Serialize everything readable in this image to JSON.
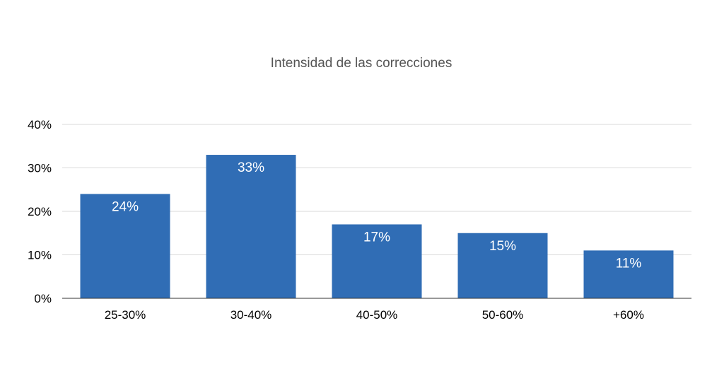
{
  "chart_data": {
    "type": "bar",
    "title": "Intensidad de las correcciones",
    "xlabel": "",
    "ylabel": "",
    "categories": [
      "25-30%",
      "30-40%",
      "40-50%",
      "50-60%",
      "+60%"
    ],
    "values": [
      24,
      33,
      17,
      15,
      11
    ],
    "data_labels": [
      "24%",
      "33%",
      "17%",
      "15%",
      "11%"
    ],
    "ylim": [
      0,
      40
    ],
    "yticks": [
      0,
      10,
      20,
      30,
      40
    ],
    "ytick_labels": [
      "0%",
      "10%",
      "20%",
      "30%",
      "40%"
    ],
    "grid": true,
    "legend": "none",
    "bar_color": "#306db5"
  }
}
